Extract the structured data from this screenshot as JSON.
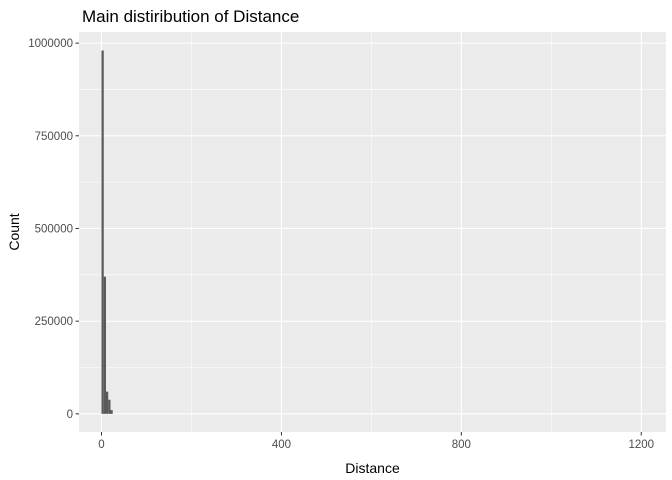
{
  "chart_data": {
    "type": "bar",
    "title": "Main distiribution of Distance",
    "xlabel": "Distance",
    "ylabel": "Count",
    "xlim": [
      -50,
      1255
    ],
    "ylim": [
      -49000,
      1030000
    ],
    "x_ticks": [
      0,
      400,
      800,
      1200
    ],
    "x_tick_labels": [
      "0",
      "400",
      "800",
      "1200"
    ],
    "y_ticks": [
      0,
      250000,
      500000,
      750000,
      1000000
    ],
    "y_tick_labels": [
      "0",
      "250000",
      "500000",
      "750000",
      "1000000"
    ],
    "grid": true,
    "bar_color": "#595959",
    "panel_background": "#ebebeb",
    "grid_color": "#ffffff",
    "bins": [
      {
        "x0": 0,
        "x1": 5,
        "count": 980000
      },
      {
        "x0": 5,
        "x1": 10,
        "count": 370000
      },
      {
        "x0": 10,
        "x1": 15,
        "count": 60000
      },
      {
        "x0": 15,
        "x1": 20,
        "count": 38000
      },
      {
        "x0": 20,
        "x1": 25,
        "count": 10000
      }
    ]
  }
}
